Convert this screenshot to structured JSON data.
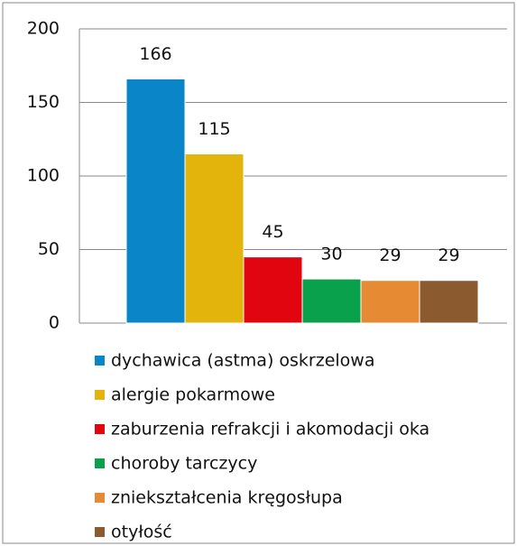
{
  "chart_data": {
    "type": "bar",
    "series": [
      {
        "name": "dychawica (astma) oskrzelowa",
        "color": "#0a86c8",
        "values": [
          166
        ]
      },
      {
        "name": "alergie pokarmowe",
        "color": "#e2b40c",
        "values": [
          115
        ]
      },
      {
        "name": "zaburzenia refrakcji i akomodacji oka",
        "color": "#e0050f",
        "values": [
          45
        ]
      },
      {
        "name": "choroby tarczycy",
        "color": "#0aa14c",
        "values": [
          30
        ]
      },
      {
        "name": "zniekształcenia kręgosłupa",
        "color": "#e68a33",
        "values": [
          29
        ]
      },
      {
        "name": "otyłość",
        "color": "#8b5a2e",
        "values": [
          29
        ]
      }
    ],
    "ylim": [
      0,
      200
    ],
    "yticks": [
      0,
      50,
      100,
      150,
      200
    ],
    "grid": true,
    "legend": "bottom"
  }
}
